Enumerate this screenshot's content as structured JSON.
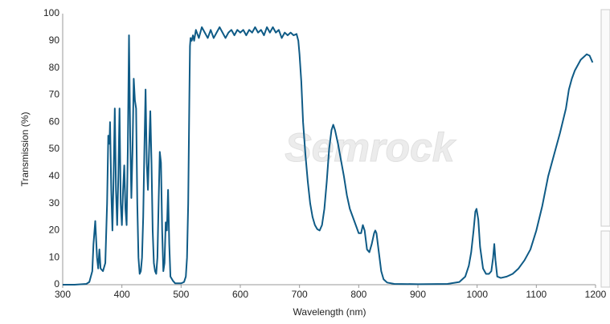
{
  "chart_data": {
    "type": "line",
    "xlabel": "Wavelength (nm)",
    "ylabel": "Transmission (%)",
    "watermark": "Semrock",
    "color": "#0f5b86",
    "grid": false,
    "xlim": [
      300,
      1200
    ],
    "xticks": [
      300,
      400,
      500,
      600,
      700,
      800,
      900,
      1000,
      1100,
      1200
    ],
    "ylim": [
      0,
      100
    ],
    "yticks": [
      0,
      10,
      20,
      30,
      40,
      50,
      60,
      70,
      80,
      90,
      100
    ],
    "x": [
      300,
      320,
      340,
      345,
      350,
      352,
      355,
      358,
      360,
      362,
      364,
      368,
      372,
      375,
      377,
      379,
      380,
      382,
      384,
      386,
      388,
      390,
      392,
      394,
      396,
      398,
      400,
      402,
      404,
      406,
      408,
      410,
      412,
      414,
      416,
      418,
      420,
      422,
      424,
      426,
      428,
      430,
      432,
      434,
      436,
      438,
      440,
      442,
      444,
      446,
      448,
      450,
      452,
      454,
      456,
      458,
      460,
      462,
      464,
      466,
      468,
      470,
      472,
      474,
      476,
      478,
      480,
      482,
      486,
      490,
      500,
      505,
      508,
      510,
      512,
      514,
      515,
      516,
      518,
      520,
      522,
      525,
      530,
      535,
      540,
      545,
      550,
      555,
      560,
      565,
      570,
      575,
      580,
      585,
      590,
      595,
      600,
      605,
      610,
      615,
      620,
      625,
      630,
      635,
      640,
      645,
      650,
      655,
      660,
      665,
      670,
      675,
      680,
      685,
      690,
      695,
      698,
      700,
      703,
      706,
      710,
      714,
      718,
      722,
      726,
      730,
      734,
      738,
      742,
      746,
      750,
      754,
      757,
      760,
      765,
      770,
      775,
      780,
      785,
      790,
      795,
      800,
      804,
      807,
      810,
      814,
      818,
      822,
      826,
      828,
      830,
      834,
      838,
      842,
      848,
      860,
      900,
      950,
      970,
      980,
      986,
      990,
      994,
      997,
      999,
      1002,
      1005,
      1010,
      1015,
      1020,
      1024,
      1027,
      1029,
      1031,
      1034,
      1040,
      1050,
      1060,
      1070,
      1080,
      1090,
      1100,
      1110,
      1120,
      1130,
      1140,
      1150,
      1155,
      1160,
      1165,
      1170,
      1175,
      1180,
      1185,
      1190,
      1195
    ],
    "values": [
      0,
      0,
      0.3,
      1,
      5,
      15,
      23.5,
      10,
      6,
      13,
      6,
      5,
      8,
      30,
      55,
      52,
      60,
      35,
      20,
      40,
      65,
      35,
      22,
      40,
      65,
      30,
      22,
      35,
      44,
      28,
      22,
      50,
      92,
      55,
      32,
      50,
      76,
      68,
      65,
      30,
      10,
      4,
      5,
      10,
      25,
      50,
      72,
      45,
      35,
      50,
      64,
      45,
      20,
      8,
      5,
      4,
      10,
      30,
      49,
      45,
      20,
      5,
      8,
      23,
      20,
      35,
      15,
      3,
      1.5,
      0.5,
      0.5,
      1,
      3,
      10,
      30,
      70,
      88,
      91,
      90,
      92,
      90,
      94,
      91,
      95,
      93,
      91,
      94,
      91,
      93,
      95,
      93,
      91,
      93,
      94,
      92,
      94,
      93,
      94,
      92,
      94,
      93,
      95,
      93,
      94,
      92,
      95,
      93,
      95,
      93,
      94,
      91,
      93,
      92,
      93,
      92,
      92.5,
      90,
      85,
      75,
      60,
      48,
      38,
      30,
      25,
      22,
      20.5,
      20,
      22,
      28,
      38,
      50,
      57,
      59,
      57,
      52,
      46,
      40,
      33,
      28,
      25,
      22,
      19,
      19,
      22,
      20,
      13,
      12,
      15,
      19,
      20,
      19,
      12,
      5,
      2,
      0.8,
      0.3,
      0.2,
      0.3,
      1,
      3,
      7,
      12,
      20,
      27,
      28,
      24,
      14,
      6,
      4,
      4,
      5,
      10,
      15,
      9,
      3,
      2.5,
      3,
      4,
      6,
      9,
      13,
      20,
      29,
      40,
      48,
      56,
      65,
      72,
      76,
      79,
      81,
      83,
      84,
      85,
      84.5,
      82
    ]
  }
}
